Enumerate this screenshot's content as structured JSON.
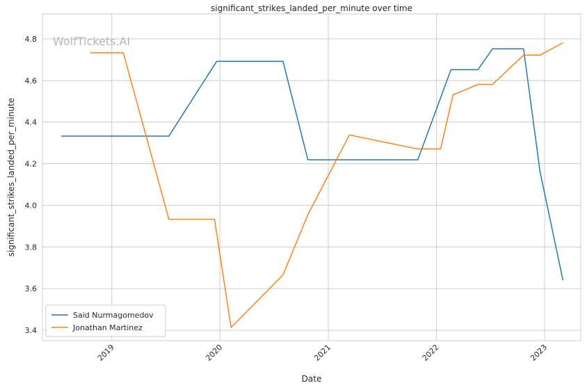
{
  "watermark": "WolfTickets.AI",
  "chart_data": {
    "type": "line",
    "title": "significant_strikes_landed_per_minute over time",
    "xlabel": "Date",
    "ylabel": "significant_strikes_landed_per_minute",
    "xlim": [
      "2018-05-12",
      "2023-05-03"
    ],
    "ylim": [
      3.35,
      4.92
    ],
    "x_ticks": [
      "2019",
      "2020",
      "2021",
      "2022",
      "2023"
    ],
    "y_ticks": [
      3.4,
      3.6,
      3.8,
      4.0,
      4.2,
      4.4,
      4.6,
      4.8
    ],
    "grid": true,
    "legend_position": "lower-left",
    "series": [
      {
        "name": "Said Nurmagomedov",
        "color": "#1f77b4",
        "points": [
          [
            "2018-07-14",
            4.333
          ],
          [
            "2019-07-13",
            4.333
          ],
          [
            "2019-12-21",
            4.692
          ],
          [
            "2020-08-01",
            4.692
          ],
          [
            "2020-10-24",
            4.219
          ],
          [
            "2021-10-30",
            4.219
          ],
          [
            "2022-02-19",
            4.652
          ],
          [
            "2022-05-21",
            4.652
          ],
          [
            "2022-07-09",
            4.752
          ],
          [
            "2022-10-22",
            4.752
          ],
          [
            "2022-12-17",
            4.16
          ],
          [
            "2023-03-04",
            3.64
          ]
        ]
      },
      {
        "name": "Jonathan Martinez",
        "color": "#ff7f0e",
        "points": [
          [
            "2018-10-20",
            4.733
          ],
          [
            "2019-02-09",
            4.733
          ],
          [
            "2019-07-13",
            3.933
          ],
          [
            "2019-12-14",
            3.933
          ],
          [
            "2020-02-08",
            3.413
          ],
          [
            "2020-08-01",
            3.666
          ],
          [
            "2020-10-24",
            3.955
          ],
          [
            "2021-03-13",
            4.338
          ],
          [
            "2021-10-30",
            4.271
          ],
          [
            "2022-01-15",
            4.271
          ],
          [
            "2022-02-26",
            4.531
          ],
          [
            "2022-05-21",
            4.581
          ],
          [
            "2022-07-09",
            4.581
          ],
          [
            "2022-10-22",
            4.722
          ],
          [
            "2022-12-17",
            4.722
          ],
          [
            "2023-03-04",
            4.781
          ]
        ]
      }
    ]
  }
}
